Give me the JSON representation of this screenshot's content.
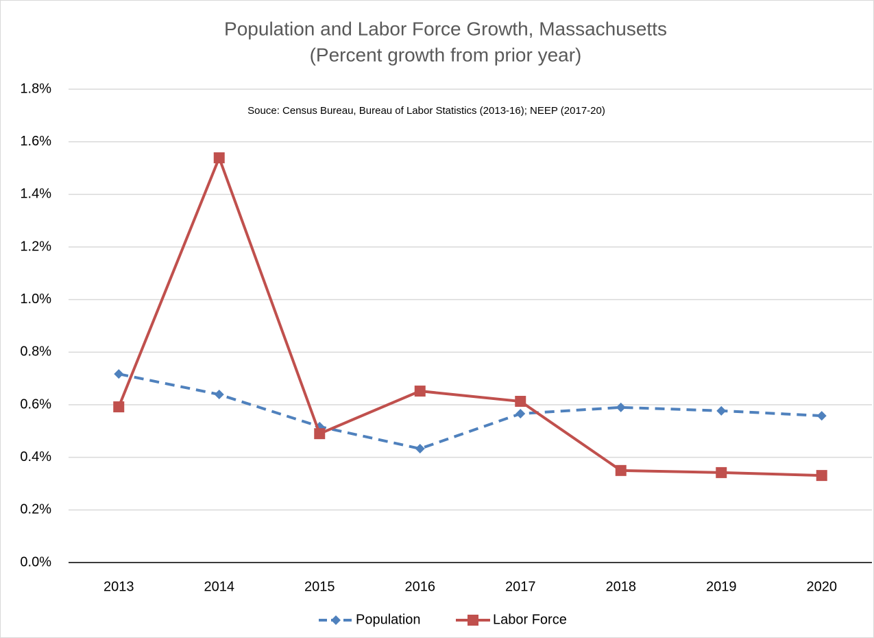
{
  "chart_data": {
    "type": "line",
    "title": "Population and Labor Force Growth, Massachusetts",
    "subtitle": "(Percent growth from prior year)",
    "annotation": "Souce: Census Bureau, Bureau of Labor Statistics (2013-16); NEEP (2017-20)",
    "categories": [
      "2013",
      "2014",
      "2015",
      "2016",
      "2017",
      "2018",
      "2019",
      "2020"
    ],
    "series": [
      {
        "name": "Population",
        "color": "#4f81bd",
        "dashed": true,
        "marker": "diamond",
        "values": [
          0.717,
          0.639,
          0.517,
          0.433,
          0.566,
          0.59,
          0.577,
          0.558
        ]
      },
      {
        "name": "Labor Force",
        "color": "#c0504d",
        "dashed": false,
        "marker": "square",
        "values": [
          0.592,
          1.539,
          0.49,
          0.652,
          0.613,
          0.35,
          0.342,
          0.331
        ]
      }
    ],
    "ylim": [
      0,
      1.8
    ],
    "yticks": [
      {
        "value": 0,
        "label": "0.0%"
      },
      {
        "value": 0.2,
        "label": "0.2%"
      },
      {
        "value": 0.4,
        "label": "0.4%"
      },
      {
        "value": 0.6,
        "label": "0.6%"
      },
      {
        "value": 0.8,
        "label": "0.8%"
      },
      {
        "value": 1.0,
        "label": "1.0%"
      },
      {
        "value": 1.2,
        "label": "1.2%"
      },
      {
        "value": 1.4,
        "label": "1.4%"
      },
      {
        "value": 1.6,
        "label": "1.6%"
      },
      {
        "value": 1.8,
        "label": "1.8%"
      }
    ],
    "grid": true,
    "legend": "bottom"
  }
}
